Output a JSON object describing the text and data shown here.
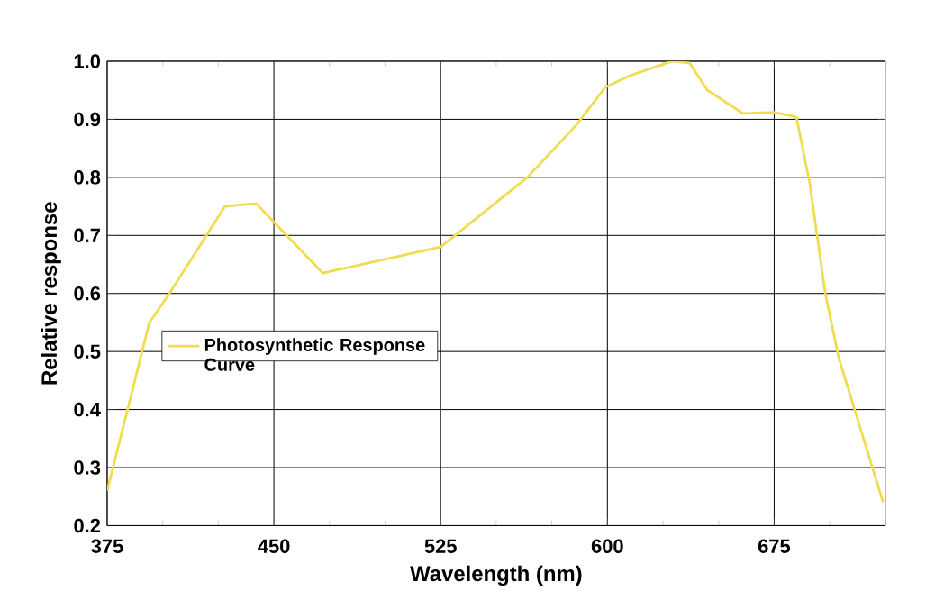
{
  "chart_data": {
    "type": "line",
    "xlabel": "Wavelength (nm)",
    "ylabel": "Relative response",
    "xlim": [
      375,
      725
    ],
    "ylim": [
      0.2,
      1.0
    ],
    "xticks": [
      375,
      {
        "value": 400,
        "label": null
      },
      {
        "value": 425,
        "label": null
      },
      450,
      {
        "value": 475,
        "label": null
      },
      {
        "value": 500,
        "label": null
      },
      525,
      {
        "value": 550,
        "label": null
      },
      {
        "value": 575,
        "label": null
      },
      600,
      {
        "value": 625,
        "label": null
      },
      {
        "value": 650,
        "label": null
      },
      675,
      {
        "value": 700,
        "label": null
      },
      {
        "value": 725,
        "label": null
      }
    ],
    "yticks": [
      0.2,
      0.3,
      0.4,
      0.5,
      0.6,
      0.7,
      0.8,
      0.9,
      {
        "value": 1.0,
        "label": "1.0"
      }
    ],
    "grid": true,
    "legend": "left",
    "series": [
      {
        "name": "Photosynthetic Response Curve",
        "color": "#f0dc50",
        "x": [
          375,
          394,
          403,
          428,
          442,
          472,
          525,
          564,
          586,
          599,
          610,
          629,
          637,
          645,
          661,
          675,
          685,
          691,
          698,
          704,
          724
        ],
        "values": [
          0.26,
          0.55,
          0.6,
          0.75,
          0.755,
          0.635,
          0.68,
          0.8,
          0.89,
          0.955,
          0.975,
          1.0,
          0.997,
          0.95,
          0.91,
          0.912,
          0.904,
          0.79,
          0.6,
          0.49,
          0.24
        ]
      }
    ]
  }
}
